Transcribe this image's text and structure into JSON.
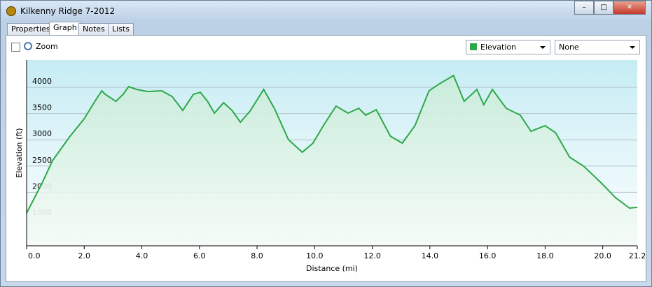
{
  "window": {
    "title": "Kilkenny Ridge 7-2012"
  },
  "tabs": [
    "Properties",
    "Graph",
    "Notes",
    "Lists"
  ],
  "zoom": {
    "label": "Zoom"
  },
  "dropdowns": {
    "secondary": "None"
  },
  "chart_data": {
    "type": "line",
    "xlabel": "Distance (mi)",
    "ylabel": "Elevation (ft)",
    "x": [
      0.0,
      0.54,
      0.9,
      1.51,
      2.0,
      2.37,
      2.61,
      2.73,
      3.1,
      3.35,
      3.54,
      3.83,
      4.2,
      4.69,
      5.05,
      5.42,
      5.79,
      6.03,
      6.28,
      6.52,
      6.84,
      7.13,
      7.42,
      7.74,
      8.23,
      8.6,
      9.09,
      9.57,
      9.94,
      10.3,
      10.74,
      11.16,
      11.53,
      11.77,
      12.14,
      12.63,
      13.04,
      13.48,
      13.97,
      14.33,
      14.82,
      15.19,
      15.63,
      15.87,
      16.17,
      16.65,
      17.14,
      17.51,
      18.0,
      18.36,
      18.85,
      19.34,
      19.95,
      20.44,
      20.93,
      21.2
    ],
    "series": [
      {
        "name": "Elevation",
        "color": "#2ea84a",
        "values": [
          1606,
          2178,
          2604,
          3069,
          3402,
          3734,
          3934,
          3867,
          3734,
          3867,
          4013,
          3960,
          3920,
          3934,
          3827,
          3561,
          3867,
          3907,
          3734,
          3508,
          3707,
          3561,
          3335,
          3535,
          3960,
          3601,
          3003,
          2763,
          2936,
          3269,
          3641,
          3508,
          3601,
          3468,
          3574,
          3069,
          2936,
          3269,
          3934,
          4066,
          4226,
          3734,
          3960,
          3668,
          3960,
          3601,
          3468,
          3162,
          3269,
          3136,
          2670,
          2497,
          2178,
          1899,
          1699,
          1713
        ]
      }
    ],
    "xlim": [
      0,
      21.2
    ],
    "ylim": [
      980,
      4520
    ],
    "xticks": [
      {
        "value": 0,
        "label": "0.0"
      },
      {
        "value": 2,
        "label": "2.0"
      },
      {
        "value": 4,
        "label": "4.0"
      },
      {
        "value": 6,
        "label": "6.0"
      },
      {
        "value": 8,
        "label": "8.0"
      },
      {
        "value": 10,
        "label": "10.0"
      },
      {
        "value": 12,
        "label": "12.0"
      },
      {
        "value": 14,
        "label": "14.0"
      },
      {
        "value": 16,
        "label": "16.0"
      },
      {
        "value": 18,
        "label": "18.0"
      },
      {
        "value": 20,
        "label": "20.0"
      },
      21.2
    ],
    "yticks": [
      1500,
      2000,
      2500,
      3000,
      3500,
      4000
    ],
    "grid": true
  }
}
